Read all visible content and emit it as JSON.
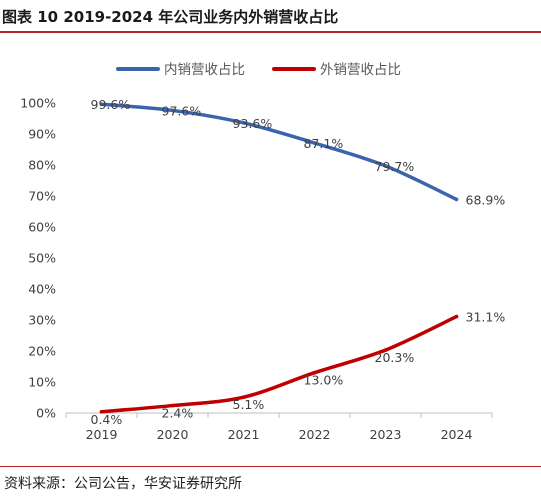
{
  "figure": {
    "title": "图表 10 2019-2024 年公司业务内外销营收占比",
    "source": "资料来源：公司公告，华安证券研究所"
  },
  "chart_data": {
    "type": "line",
    "x": [
      "2019",
      "2020",
      "2021",
      "2022",
      "2023",
      "2024"
    ],
    "series": [
      {
        "name": "内销营收占比",
        "color": "#3a65ae",
        "values": [
          99.6,
          97.6,
          93.6,
          87.1,
          79.7,
          68.9
        ],
        "labels": [
          "99.6%",
          "97.6%",
          "93.6%",
          "87.1%",
          "79.7%",
          "68.9%"
        ]
      },
      {
        "name": "外销营收占比",
        "color": "#c00000",
        "values": [
          0.4,
          2.4,
          5.1,
          13.0,
          20.3,
          31.1
        ],
        "labels": [
          "0.4%",
          "2.4%",
          "5.1%",
          "13.0%",
          "20.3%",
          "31.1%"
        ]
      }
    ],
    "y_ticks": [
      "0%",
      "10%",
      "20%",
      "30%",
      "40%",
      "50%",
      "60%",
      "70%",
      "80%",
      "90%",
      "100%"
    ],
    "ylim": [
      0,
      100
    ],
    "grid": false,
    "legend_position": "top"
  }
}
